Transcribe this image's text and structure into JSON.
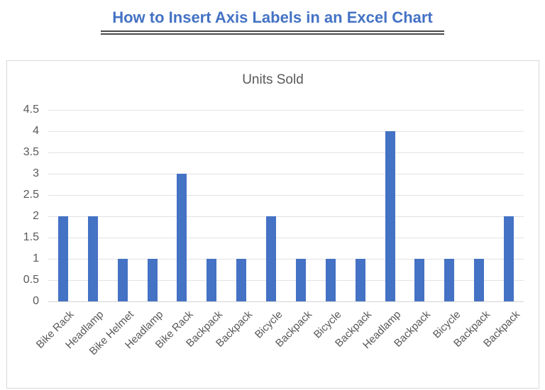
{
  "header": {
    "title": "How to Insert Axis Labels in an Excel Chart"
  },
  "chart_data": {
    "type": "bar",
    "title": "Units Sold",
    "categories": [
      "Bike Rack",
      "Headlamp",
      "Bike Helmet",
      "Headlamp",
      "Bike Rack",
      "Backpack",
      "Backpack",
      "Bicycle",
      "Backpack",
      "Bicycle",
      "Backpack",
      "Headlamp",
      "Backpack",
      "Bicycle",
      "Backpack",
      "Backpack"
    ],
    "values": [
      2,
      2,
      1,
      1,
      3,
      1,
      1,
      2,
      1,
      1,
      1,
      4,
      1,
      1,
      1,
      2
    ],
    "xlabel": "",
    "ylabel": "",
    "ylim": [
      0,
      4.5
    ],
    "yticks": [
      0,
      0.5,
      1,
      1.5,
      2,
      2.5,
      3,
      3.5,
      4,
      4.5
    ],
    "grid": true,
    "legend": false,
    "x_tick_rotation_deg": 45,
    "colors": {
      "bar": "#4472C4",
      "gridline": "#E2E2E2",
      "axis_text": "#595959",
      "heading_text": "#4472C4",
      "chart_border": "#D9D9D9"
    }
  }
}
